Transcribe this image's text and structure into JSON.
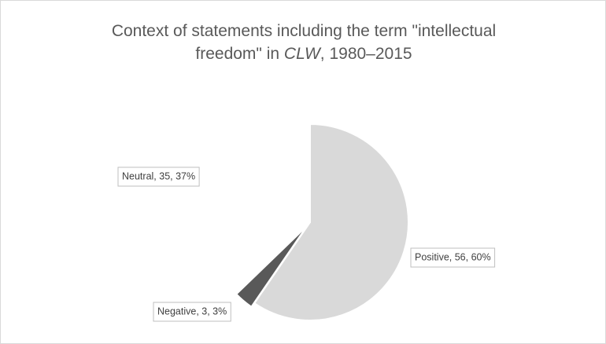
{
  "chart_data": {
    "type": "pie",
    "title": [
      "Context of statements including the term \"intellectual freedom\" in ",
      "CLW",
      ", 1980–2015"
    ],
    "values": [
      56,
      3,
      35
    ],
    "value_labels": [
      "Positive, 56, 60%",
      "Negative, 3, 3%",
      "Neutral, 35, 37%"
    ],
    "colors": [
      "#d9d9d9",
      "#595959",
      "#ffffff"
    ]
  }
}
